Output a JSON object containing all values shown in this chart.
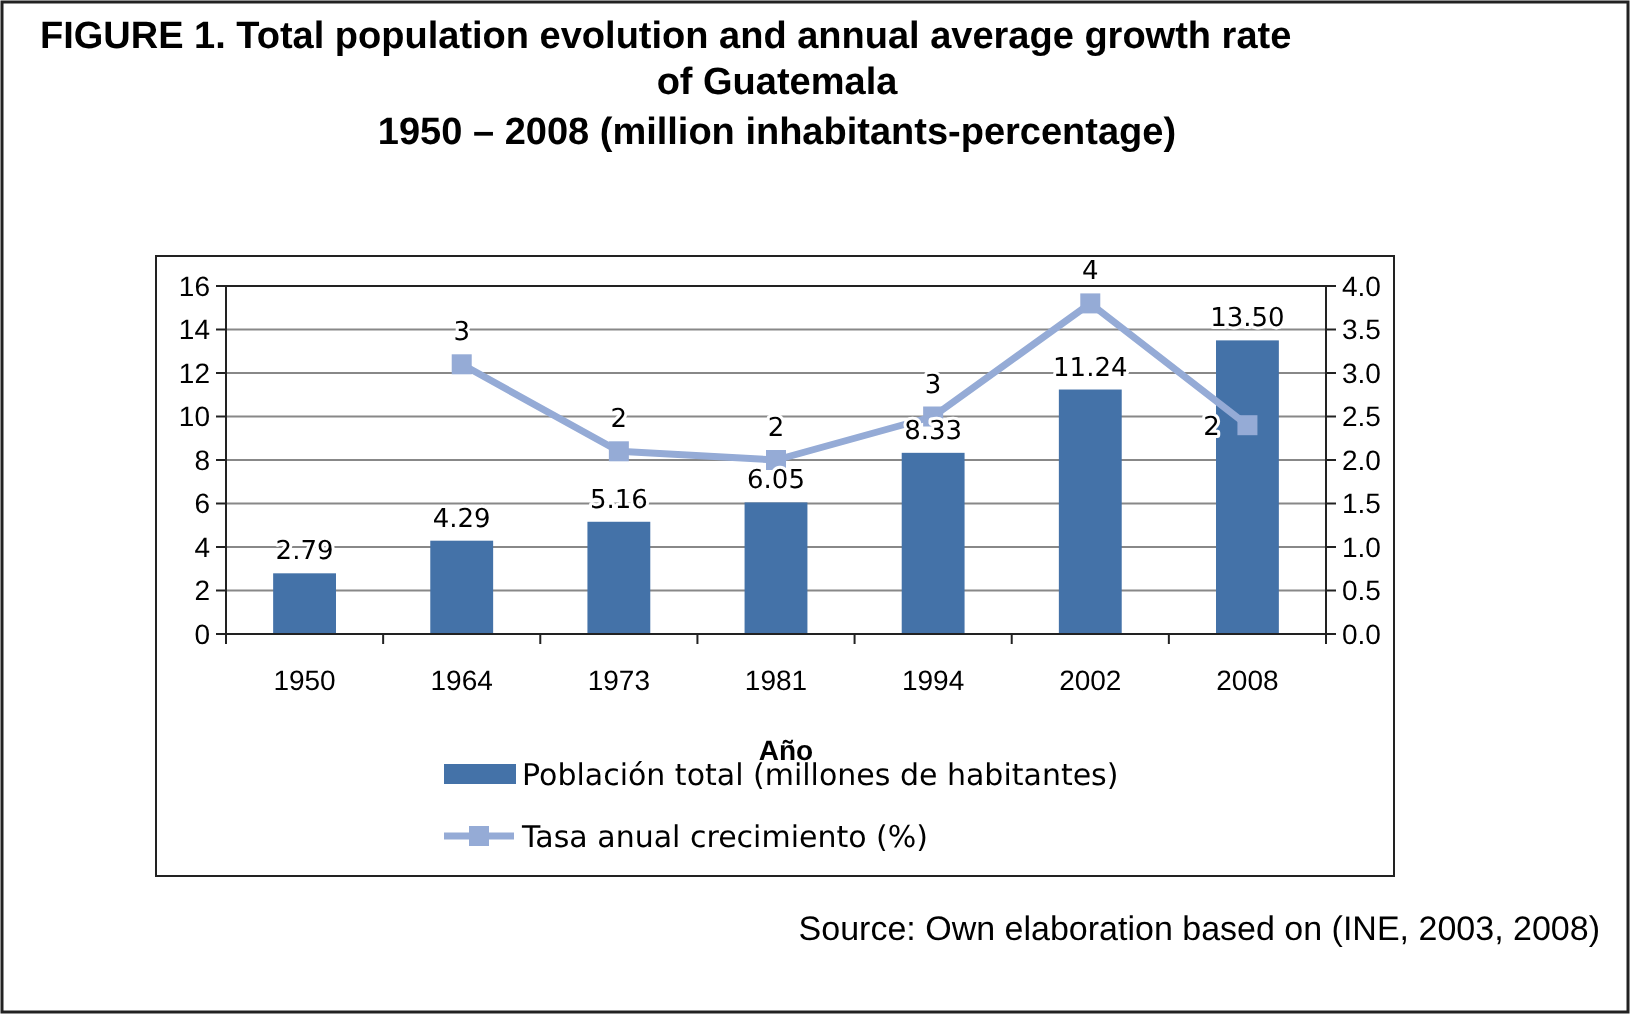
{
  "chart_data": {
    "type": "bar",
    "title": "FIGURE 1.  Total population evolution and annual average growth rate of Guatemala",
    "subtitle": "1950 – 2008  (million inhabitants-percentage)",
    "xlabel": "Año",
    "categories": [
      "1950",
      "1964",
      "1973",
      "1981",
      "1994",
      "2002",
      "2008"
    ],
    "series": [
      {
        "name": "Población total (millones de habitantes)",
        "color": "#4472a8",
        "values": [
          2.79,
          4.29,
          5.16,
          6.05,
          8.33,
          11.24,
          13.5
        ],
        "value_labels": [
          "2.79",
          "4.29",
          "5.16",
          "6.05",
          "8.33",
          "11.24",
          "13.50"
        ]
      },
      {
        "name": "Tasa anual crecimiento (%)",
        "type": "line",
        "axis": "y2",
        "color": "#95abd6",
        "marker": "square",
        "values": [
          null,
          3.1,
          2.1,
          2.0,
          2.5,
          3.8,
          2.4
        ],
        "value_labels": [
          null,
          "3",
          "2",
          "2",
          "3",
          "4",
          "2"
        ]
      }
    ],
    "ylim": [
      0,
      16
    ],
    "yticks": [
      0,
      2,
      4,
      6,
      8,
      10,
      12,
      14,
      16
    ],
    "y2lim": [
      0,
      4
    ],
    "y2ticks": [
      {
        "value": 0,
        "label": "0.0"
      },
      {
        "value": 0.5,
        "label": "0.5"
      },
      {
        "value": 1,
        "label": "1.0"
      },
      {
        "value": 1.5,
        "label": "1.5"
      },
      {
        "value": 2,
        "label": "2.0"
      },
      {
        "value": 2.5,
        "label": "2.5"
      },
      {
        "value": 3,
        "label": "3.0"
      },
      {
        "value": 3.5,
        "label": "3.5"
      },
      {
        "value": 4,
        "label": "4.0"
      }
    ],
    "grid": "y",
    "legend": "bottom",
    "annotations": [
      "Source:  Own elaboration based on (INE, 2003, 2008)"
    ]
  }
}
